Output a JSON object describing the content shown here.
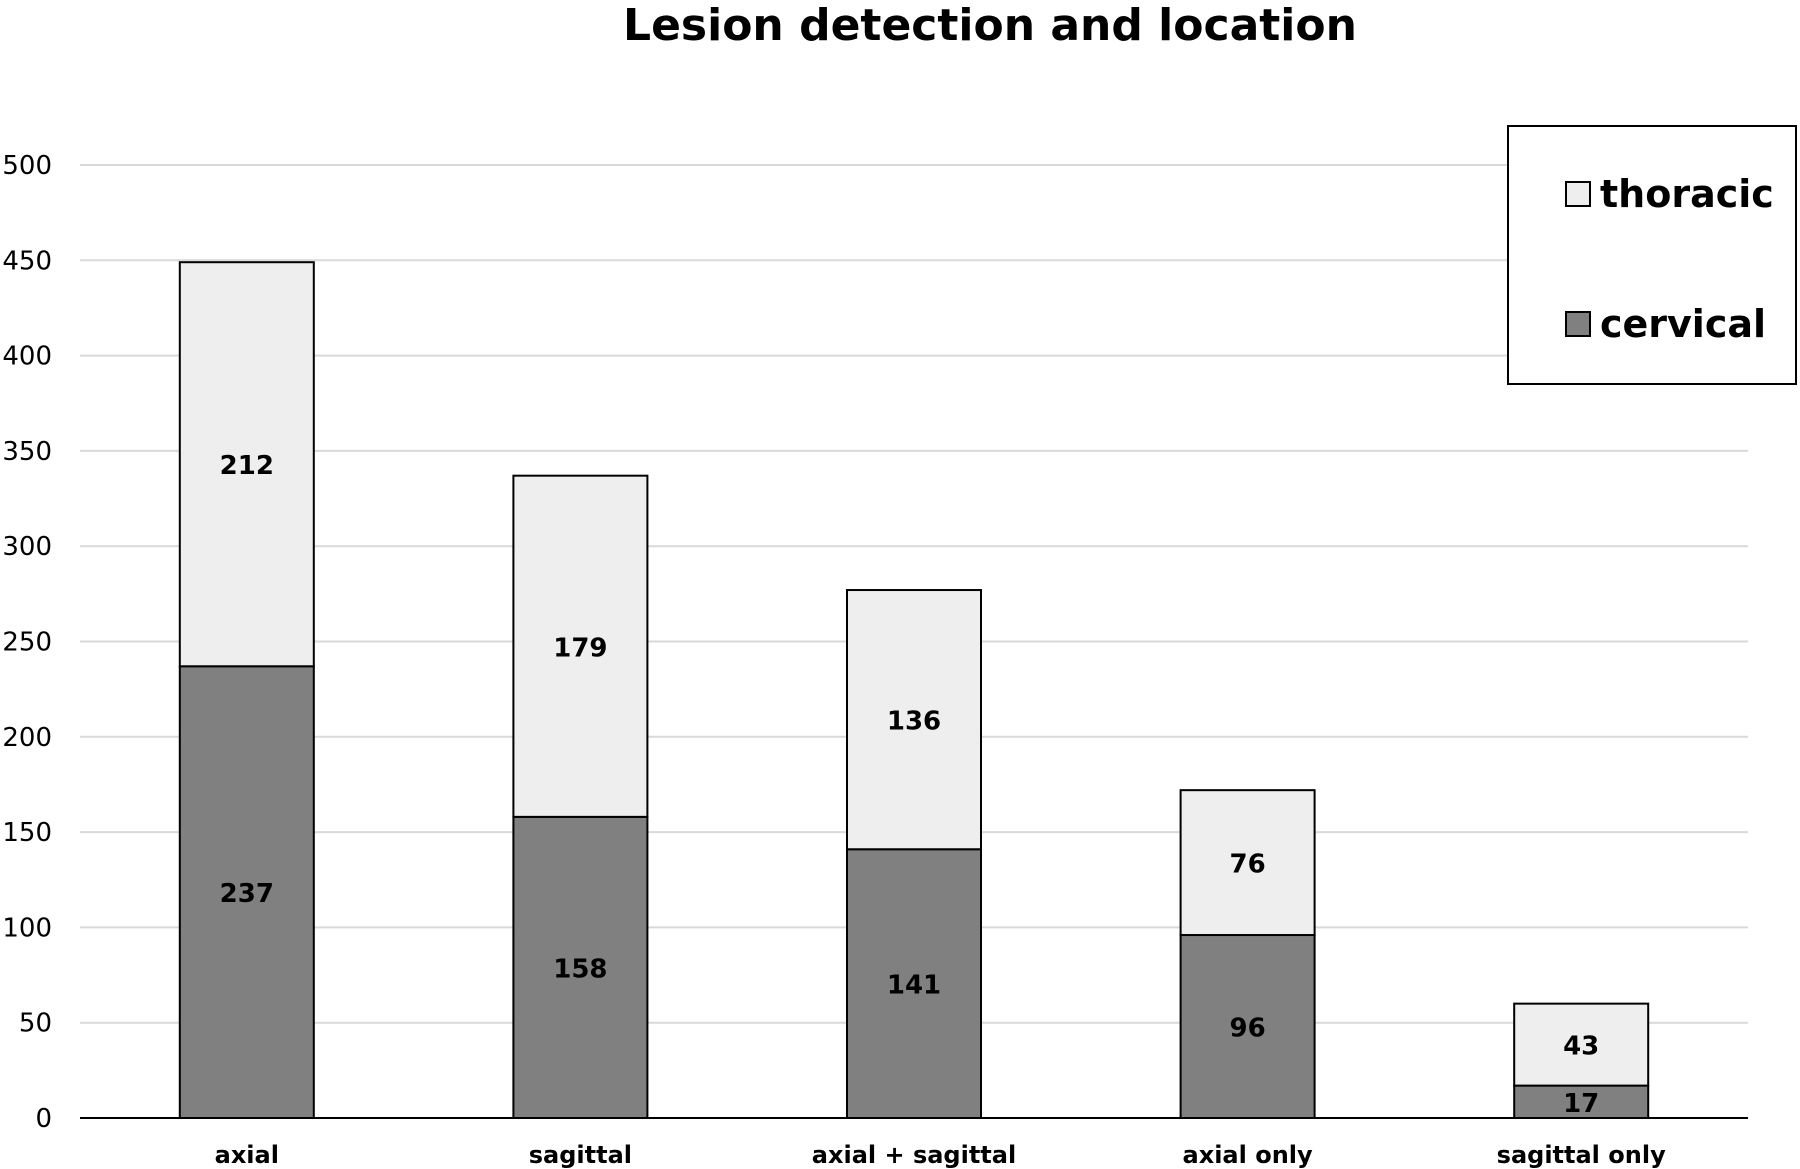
{
  "chart_data": {
    "type": "bar",
    "stacked": true,
    "title": "Lesion detection and location",
    "xlabel": "",
    "ylabel": "",
    "ylim": [
      0,
      500
    ],
    "yticks": [
      0,
      50,
      100,
      150,
      200,
      250,
      300,
      350,
      400,
      450,
      500
    ],
    "grid": true,
    "legend_position": "top-right",
    "categories": [
      "axial",
      "sagittal",
      "axial + sagittal",
      "axial only",
      "sagittal only"
    ],
    "series": [
      {
        "name": "cervical",
        "color": "#808080",
        "values": [
          237,
          158,
          141,
          96,
          17
        ]
      },
      {
        "name": "thoracic",
        "color": "#eeeeee",
        "values": [
          212,
          179,
          136,
          76,
          43
        ]
      }
    ],
    "legend_order": [
      "thoracic",
      "cervical"
    ]
  }
}
